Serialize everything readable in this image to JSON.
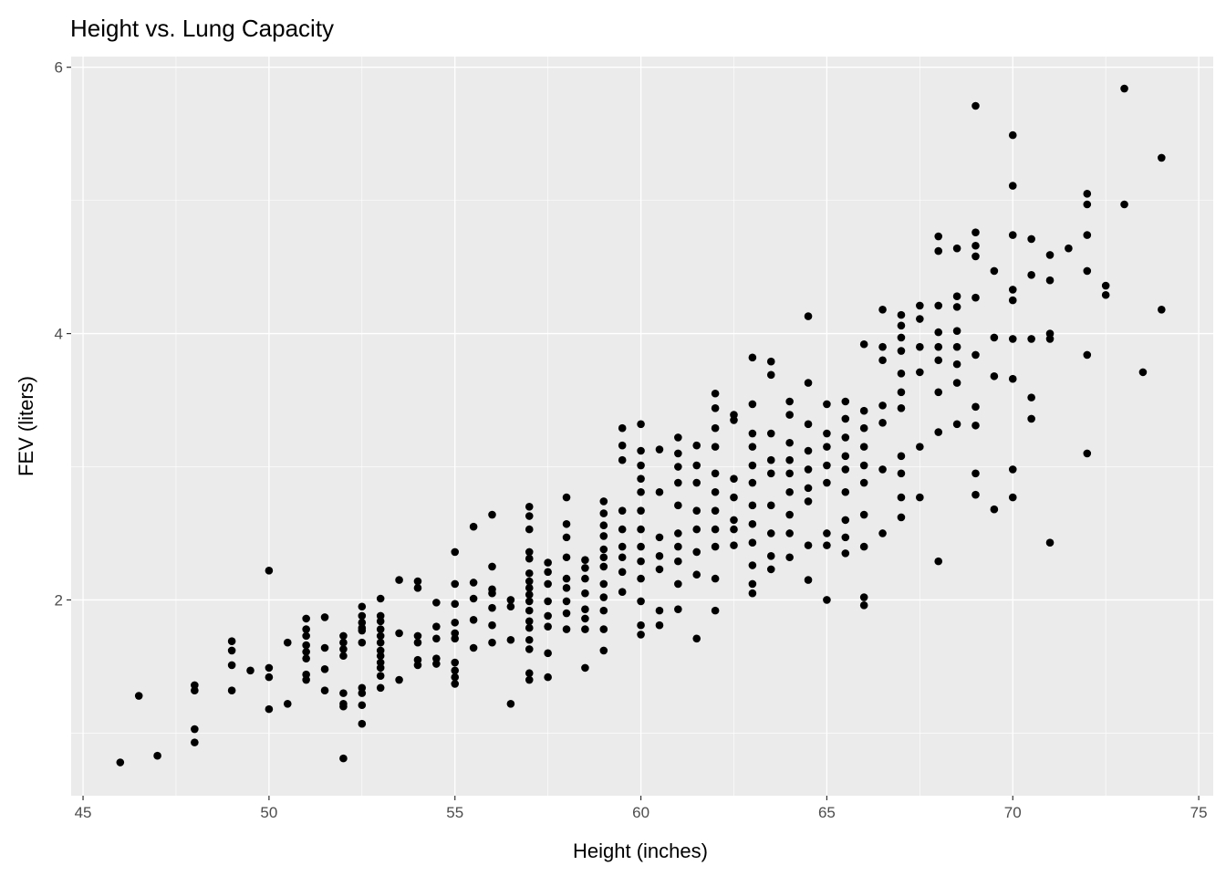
{
  "chart_data": {
    "type": "scatter",
    "title": "Height vs. Lung Capacity",
    "xlabel": "Height (inches)",
    "ylabel": "FEV (liters)",
    "xlim": [
      44.68,
      75.39
    ],
    "ylim": [
      0.53,
      6.08
    ],
    "xticks": [
      45,
      50,
      55,
      60,
      65,
      70,
      75
    ],
    "yticks": [
      2,
      4,
      6
    ],
    "xtick_labels": [
      "45",
      "50",
      "55",
      "60",
      "65",
      "70",
      "75"
    ],
    "ytick_labels": [
      "2",
      "4",
      "6"
    ],
    "grid": true,
    "point_color": "#000000",
    "panel_color": "#EBEBEB",
    "columns": [
      {
        "x": 46,
        "y": [
          0.78
        ]
      },
      {
        "x": 46.5,
        "y": [
          1.28
        ]
      },
      {
        "x": 47,
        "y": [
          0.83
        ]
      },
      {
        "x": 48,
        "y": [
          1.36,
          1.32,
          1.03,
          0.93
        ]
      },
      {
        "x": 49,
        "y": [
          1.69,
          1.62,
          1.51,
          1.32
        ]
      },
      {
        "x": 49.5,
        "y": [
          1.47
        ]
      },
      {
        "x": 50,
        "y": [
          2.22,
          1.49,
          1.42,
          1.18
        ]
      },
      {
        "x": 50.5,
        "y": [
          1.68,
          1.22
        ]
      },
      {
        "x": 51,
        "y": [
          1.86,
          1.78,
          1.73,
          1.66,
          1.61,
          1.56,
          1.44,
          1.4
        ]
      },
      {
        "x": 51.5,
        "y": [
          1.87,
          1.64,
          1.48,
          1.32
        ]
      },
      {
        "x": 52,
        "y": [
          1.73,
          1.68,
          1.63,
          1.58,
          1.3,
          1.22,
          1.2,
          0.81
        ]
      },
      {
        "x": 52.5,
        "y": [
          1.95,
          1.88,
          1.83,
          1.79,
          1.77,
          1.68,
          1.34,
          1.3,
          1.21,
          1.07
        ]
      },
      {
        "x": 53,
        "y": [
          2.01,
          1.88,
          1.84,
          1.78,
          1.73,
          1.68,
          1.62,
          1.58,
          1.53,
          1.49,
          1.43,
          1.34
        ]
      },
      {
        "x": 53.5,
        "y": [
          2.15,
          1.75,
          1.4
        ]
      },
      {
        "x": 54,
        "y": [
          2.14,
          2.09,
          1.73,
          1.68,
          1.55,
          1.51
        ]
      },
      {
        "x": 54.5,
        "y": [
          1.98,
          1.8,
          1.71,
          1.56,
          1.52
        ]
      },
      {
        "x": 55,
        "y": [
          2.36,
          2.12,
          1.97,
          1.83,
          1.75,
          1.71,
          1.53,
          1.47,
          1.42,
          1.37
        ]
      },
      {
        "x": 55.5,
        "y": [
          2.55,
          2.13,
          2.01,
          1.85,
          1.64
        ]
      },
      {
        "x": 56,
        "y": [
          2.64,
          2.25,
          2.08,
          2.05,
          1.94,
          1.81,
          1.68
        ]
      },
      {
        "x": 56.5,
        "y": [
          2.0,
          1.95,
          1.7,
          1.22
        ]
      },
      {
        "x": 57,
        "y": [
          2.7,
          2.63,
          2.53,
          2.36,
          2.31,
          2.2,
          2.14,
          2.09,
          2.04,
          1.99,
          1.92,
          1.84,
          1.79,
          1.7,
          1.63,
          1.45,
          1.4
        ]
      },
      {
        "x": 57.5,
        "y": [
          2.28,
          2.21,
          2.12,
          1.99,
          1.88,
          1.8,
          1.6,
          1.42
        ]
      },
      {
        "x": 58,
        "y": [
          2.77,
          2.57,
          2.47,
          2.32,
          2.16,
          2.09,
          1.99,
          1.9,
          1.78
        ]
      },
      {
        "x": 58.5,
        "y": [
          2.3,
          2.24,
          2.16,
          2.05,
          1.93,
          1.86,
          1.78,
          1.49
        ]
      },
      {
        "x": 59,
        "y": [
          2.74,
          2.65,
          2.56,
          2.48,
          2.38,
          2.32,
          2.25,
          2.12,
          2.02,
          1.92,
          1.78,
          1.62
        ]
      },
      {
        "x": 59.5,
        "y": [
          3.29,
          3.16,
          3.05,
          2.67,
          2.53,
          2.4,
          2.32,
          2.21,
          2.06
        ]
      },
      {
        "x": 60,
        "y": [
          3.32,
          3.12,
          3.01,
          2.91,
          2.81,
          2.67,
          2.53,
          2.4,
          2.29,
          2.16,
          1.99,
          1.81,
          1.74
        ]
      },
      {
        "x": 60.5,
        "y": [
          3.13,
          2.81,
          2.47,
          2.33,
          2.23,
          1.92,
          1.81
        ]
      },
      {
        "x": 61,
        "y": [
          3.22,
          3.1,
          3.0,
          2.88,
          2.71,
          2.5,
          2.4,
          2.29,
          2.12,
          1.93
        ]
      },
      {
        "x": 61.5,
        "y": [
          3.16,
          3.01,
          2.88,
          2.67,
          2.53,
          2.36,
          2.19,
          1.71
        ]
      },
      {
        "x": 62,
        "y": [
          3.55,
          3.44,
          3.29,
          3.15,
          2.95,
          2.81,
          2.67,
          2.53,
          2.4,
          2.16,
          1.92
        ]
      },
      {
        "x": 62.5,
        "y": [
          3.39,
          3.35,
          2.91,
          2.77,
          2.6,
          2.53,
          2.41
        ]
      },
      {
        "x": 63,
        "y": [
          3.82,
          3.47,
          3.25,
          3.15,
          3.01,
          2.88,
          2.71,
          2.57,
          2.43,
          2.26,
          2.12,
          2.05
        ]
      },
      {
        "x": 63.5,
        "y": [
          3.79,
          3.69,
          3.25,
          3.05,
          2.95,
          2.71,
          2.5,
          2.33,
          2.23
        ]
      },
      {
        "x": 64,
        "y": [
          3.49,
          3.39,
          3.18,
          3.05,
          2.95,
          2.81,
          2.64,
          2.5,
          2.32
        ]
      },
      {
        "x": 64.5,
        "y": [
          4.13,
          3.63,
          3.32,
          3.12,
          2.98,
          2.84,
          2.74,
          2.41,
          2.15
        ]
      },
      {
        "x": 65,
        "y": [
          3.47,
          3.25,
          3.15,
          3.01,
          2.88,
          2.5,
          2.41,
          2.0
        ]
      },
      {
        "x": 65.5,
        "y": [
          3.49,
          3.36,
          3.22,
          3.08,
          2.98,
          2.81,
          2.6,
          2.47,
          2.35
        ]
      },
      {
        "x": 66,
        "y": [
          3.92,
          3.42,
          3.29,
          3.15,
          3.01,
          2.88,
          2.64,
          2.4,
          2.02,
          1.96
        ]
      },
      {
        "x": 66.5,
        "y": [
          4.18,
          3.9,
          3.8,
          3.46,
          3.33,
          2.98,
          2.5
        ]
      },
      {
        "x": 67,
        "y": [
          4.14,
          4.06,
          3.97,
          3.87,
          3.7,
          3.56,
          3.44,
          3.08,
          2.95,
          2.77,
          2.62
        ]
      },
      {
        "x": 67.5,
        "y": [
          4.21,
          4.11,
          3.9,
          3.71,
          3.15,
          2.77
        ]
      },
      {
        "x": 68,
        "y": [
          4.73,
          4.62,
          4.21,
          4.01,
          3.9,
          3.8,
          3.56,
          3.26,
          2.29
        ]
      },
      {
        "x": 68.5,
        "y": [
          4.64,
          4.28,
          4.2,
          4.02,
          3.9,
          3.77,
          3.63,
          3.32
        ]
      },
      {
        "x": 69,
        "y": [
          5.71,
          4.76,
          4.66,
          4.58,
          4.27,
          3.84,
          3.45,
          3.31,
          2.95,
          2.79
        ]
      },
      {
        "x": 69.5,
        "y": [
          4.47,
          3.97,
          3.68,
          2.68
        ]
      },
      {
        "x": 70,
        "y": [
          5.49,
          5.11,
          4.74,
          4.33,
          4.25,
          3.96,
          3.66,
          2.98,
          2.77
        ]
      },
      {
        "x": 70.5,
        "y": [
          4.71,
          4.44,
          3.96,
          3.52,
          3.36
        ]
      },
      {
        "x": 71,
        "y": [
          4.59,
          4.4,
          3.96,
          4.0,
          2.43
        ]
      },
      {
        "x": 71.5,
        "y": [
          4.64
        ]
      },
      {
        "x": 72,
        "y": [
          5.05,
          4.97,
          4.74,
          4.47,
          3.84,
          3.1
        ]
      },
      {
        "x": 72.5,
        "y": [
          4.36,
          4.29
        ]
      },
      {
        "x": 73,
        "y": [
          5.84,
          4.97
        ]
      },
      {
        "x": 73.5,
        "y": [
          3.71
        ]
      },
      {
        "x": 74,
        "y": [
          5.32,
          4.18
        ]
      }
    ]
  }
}
